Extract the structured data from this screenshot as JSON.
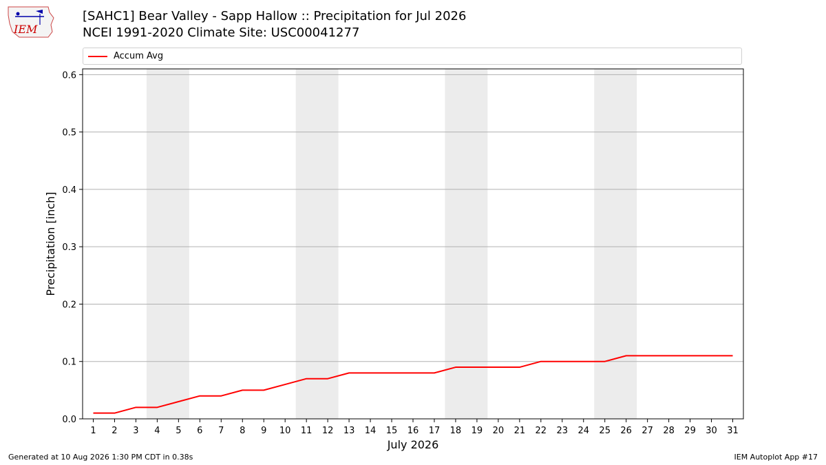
{
  "header": {
    "title_line1": "[SAHC1] Bear Valley - Sapp Hallow :: Precipitation for Jul 2026",
    "title_line2": "NCEI 1991-2020 Climate Site: USC00041277",
    "logo_text": "IEM"
  },
  "legend": {
    "label": "Accum Avg"
  },
  "footer": {
    "left": "Generated at 10 Aug 2026 1:30 PM CDT in 0.38s",
    "right": "IEM Autoplot App #17"
  },
  "colors": {
    "line": "#ff0000",
    "weekend_band": "#ececec",
    "grid": "#b0b0b0"
  },
  "chart_data": {
    "type": "line",
    "xlabel": "July 2026",
    "ylabel": "Precipitation [inch]",
    "ylim": [
      0,
      0.6
    ],
    "yticks": [
      "0.0",
      "0.1",
      "0.2",
      "0.3",
      "0.4",
      "0.5",
      "0.6"
    ],
    "x": [
      1,
      2,
      3,
      4,
      5,
      6,
      7,
      8,
      9,
      10,
      11,
      12,
      13,
      14,
      15,
      16,
      17,
      18,
      19,
      20,
      21,
      22,
      23,
      24,
      25,
      26,
      27,
      28,
      29,
      30,
      31
    ],
    "series": [
      {
        "name": "Accum Avg",
        "values": [
          0.01,
          0.01,
          0.02,
          0.02,
          0.03,
          0.04,
          0.04,
          0.05,
          0.05,
          0.06,
          0.07,
          0.07,
          0.08,
          0.08,
          0.08,
          0.08,
          0.08,
          0.09,
          0.09,
          0.09,
          0.09,
          0.1,
          0.1,
          0.1,
          0.1,
          0.11,
          0.11,
          0.11,
          0.11,
          0.11,
          0.11
        ]
      }
    ],
    "weekend_bands": [
      [
        4,
        5
      ],
      [
        11,
        12
      ],
      [
        18,
        19
      ],
      [
        25,
        26
      ]
    ],
    "grid": "horizontal"
  }
}
